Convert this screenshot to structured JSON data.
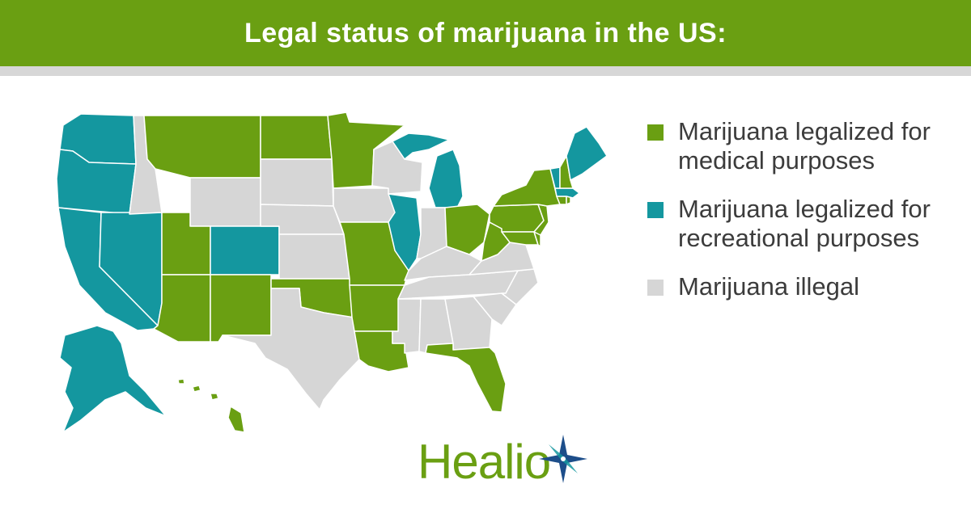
{
  "header": {
    "title": "Legal status of marijuana in the US:"
  },
  "colors": {
    "banner": "#6a9f12",
    "medical": "#6a9f12",
    "recreational": "#14979f",
    "illegal": "#d6d6d6",
    "logo_star": "#1d4e8a"
  },
  "legend": [
    {
      "label": "Marijuana legalized for medical purposes",
      "status": "medical"
    },
    {
      "label": "Marijuana legalized for recreational purposes",
      "status": "recreational"
    },
    {
      "label": "Marijuana illegal",
      "status": "illegal"
    }
  ],
  "map": {
    "states": {
      "WA": "recreational",
      "OR": "recreational",
      "CA": "recreational",
      "NV": "recreational",
      "CO": "recreational",
      "AK": "recreational",
      "MI": "recreational",
      "IL": "recreational",
      "VT": "recreational",
      "MA": "recreational",
      "ME": "recreational",
      "MT": "medical",
      "ND": "medical",
      "MN": "medical",
      "UT": "medical",
      "AZ": "medical",
      "NM": "medical",
      "OK": "medical",
      "MO": "medical",
      "AR": "medical",
      "LA": "medical",
      "FL": "medical",
      "OH": "medical",
      "WV": "medical",
      "PA": "medical",
      "NY": "medical",
      "NH": "medical",
      "NJ": "medical",
      "MD": "medical",
      "DE": "medical",
      "CT": "medical",
      "RI": "medical",
      "HI": "medical",
      "ID": "illegal",
      "WY": "illegal",
      "SD": "illegal",
      "NE": "illegal",
      "KS": "illegal",
      "TX": "illegal",
      "IA": "illegal",
      "WI": "illegal",
      "IN": "illegal",
      "KY": "illegal",
      "TN": "illegal",
      "MS": "illegal",
      "AL": "illegal",
      "GA": "illegal",
      "SC": "illegal",
      "NC": "illegal",
      "VA": "illegal"
    }
  },
  "logo": {
    "text": "Healio",
    "icon": "compass-star-icon"
  }
}
